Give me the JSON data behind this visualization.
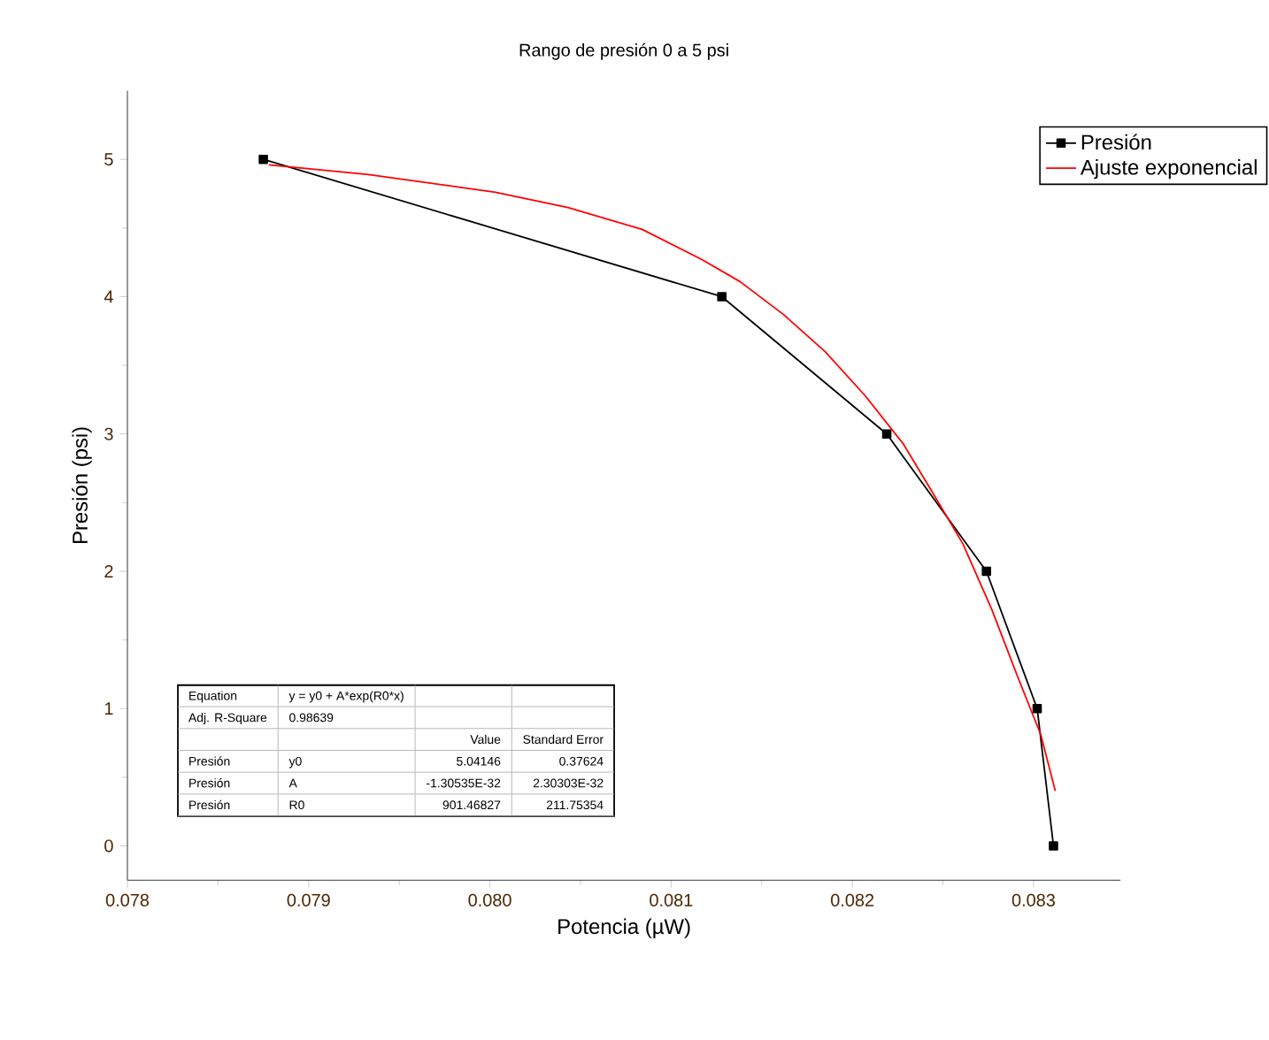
{
  "chart_data": {
    "type": "line",
    "title": "Rango de presión 0 a 5 psi",
    "xlabel": "Potencia (µW)",
    "ylabel": "Presión (psi)",
    "xlim": [
      0.078,
      0.08348
    ],
    "xticks": [
      {
        "value": 0.078,
        "label": "0.078"
      },
      {
        "value": 0.079,
        "label": "0.079"
      },
      {
        "value": 0.08,
        "label": "0.080"
      },
      {
        "value": 0.081,
        "label": "0.081"
      },
      {
        "value": 0.082,
        "label": "0.082"
      },
      {
        "value": 0.083,
        "label": "0.083"
      }
    ],
    "ylim": [
      -0.25,
      5.5
    ],
    "yticks": [
      0,
      1,
      2,
      3,
      4,
      5
    ],
    "grid": false,
    "legend": "top right",
    "series": [
      {
        "name": "Presión",
        "color": "#000000",
        "marker": "square",
        "x": [
          0.07875,
          0.08128,
          0.08219,
          0.08274,
          0.08302,
          0.08311
        ],
        "values": [
          5,
          4,
          3,
          2,
          1,
          0
        ]
      },
      {
        "name": "Ajuste exponencial",
        "color": "#ff0000",
        "marker": "none",
        "x": [
          0.07878,
          0.07933,
          0.08003,
          0.08043,
          0.08084,
          0.08117,
          0.08138,
          0.08162,
          0.08185,
          0.08207,
          0.08228,
          0.08244,
          0.08261,
          0.08277,
          0.08291,
          0.08304,
          0.08312
        ],
        "values": [
          4.96,
          4.89,
          4.76,
          4.65,
          4.49,
          4.27,
          4.11,
          3.87,
          3.6,
          3.28,
          2.93,
          2.58,
          2.2,
          1.72,
          1.24,
          0.81,
          0.4
        ]
      }
    ],
    "annotations": [
      "Equation",
      "y = y0 + A*exp(R0*x)",
      "Adj. R-Square",
      "0.98639",
      "Value",
      "Standard Error",
      "Presión",
      "y0",
      "5.04146",
      "0.37624",
      "Presión",
      "A",
      "-1.30535E-32",
      "2.30303E-32",
      "Presión",
      "R0",
      "901.46827",
      "211.75354"
    ]
  }
}
